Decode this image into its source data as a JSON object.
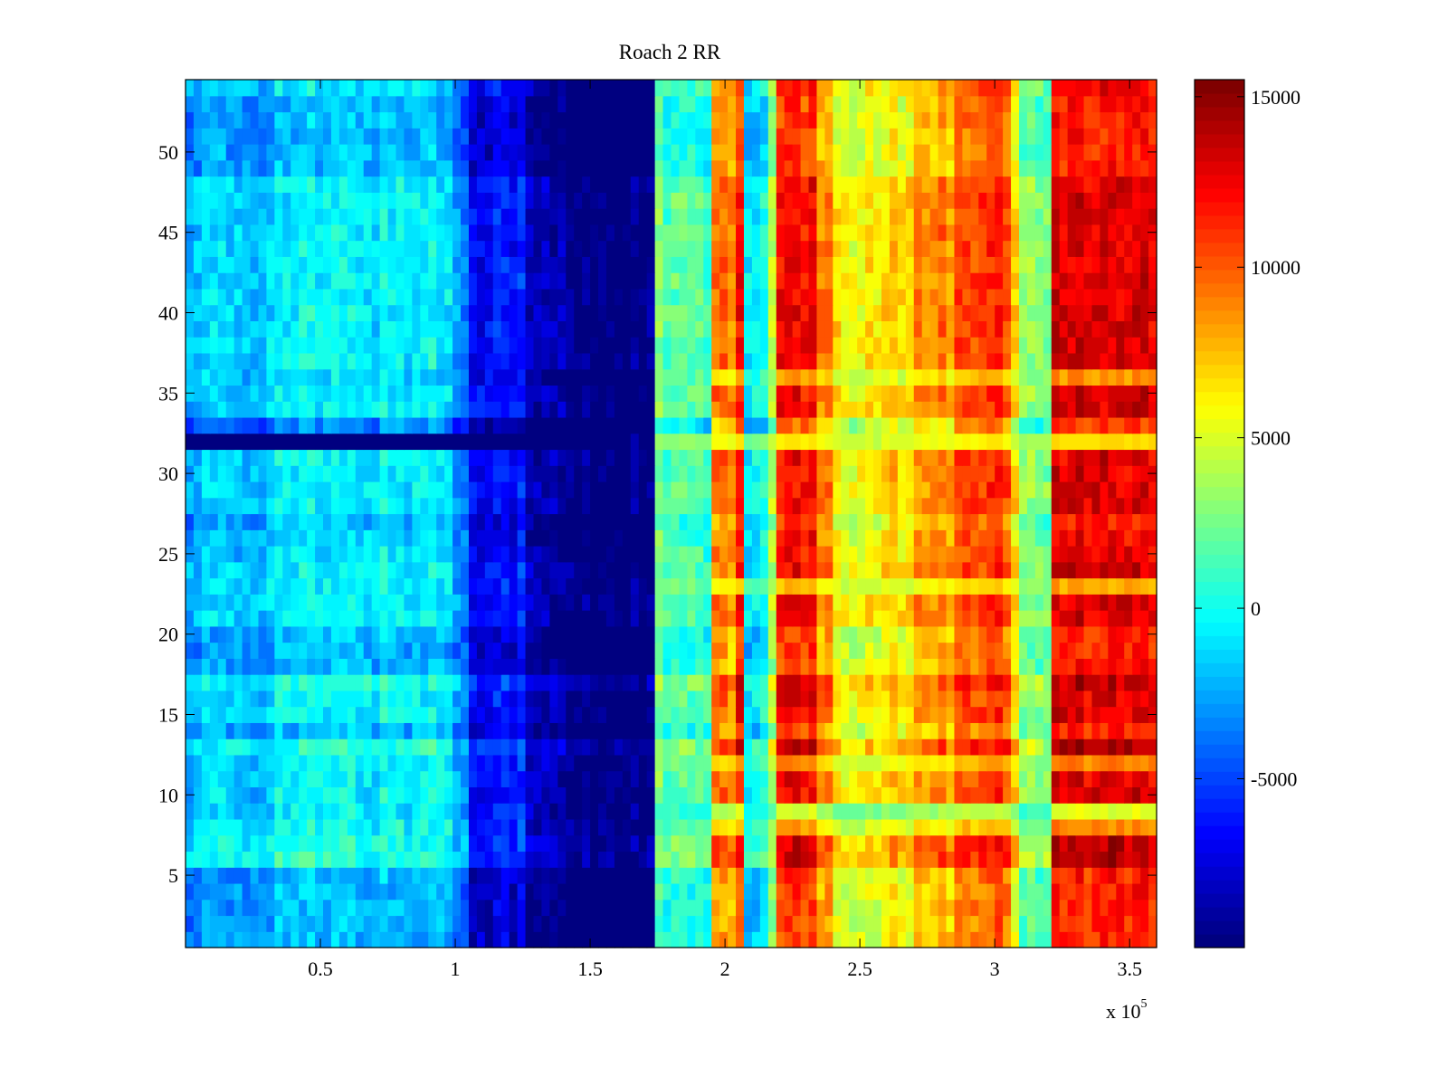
{
  "chart_data": {
    "type": "heatmap",
    "title": "Roach 2 RR",
    "xlabel": "",
    "ylabel": "",
    "x_multiplier_label": "x 10",
    "x_multiplier_exponent": "5",
    "xlim": [
      0,
      3.6
    ],
    "ylim": [
      0.5,
      54.5
    ],
    "x_ticks": [
      "0.5",
      "1",
      "1.5",
      "2",
      "2.5",
      "3",
      "3.5"
    ],
    "x_tick_values": [
      0.5,
      1,
      1.5,
      2,
      2.5,
      3,
      3.5
    ],
    "y_ticks": [
      "5",
      "10",
      "15",
      "20",
      "25",
      "30",
      "35",
      "40",
      "45",
      "50"
    ],
    "y_tick_values": [
      5,
      10,
      15,
      20,
      25,
      30,
      35,
      40,
      45,
      50
    ],
    "rows": 54,
    "x_bin_width_1e5": 0.03,
    "colormap": "jet",
    "clim": [
      -9950,
      15500
    ],
    "colorbar": {
      "ticks": [
        "-5000",
        "0",
        "5000",
        "10000",
        "15000"
      ],
      "tick_values": [
        -5000,
        0,
        5000,
        10000,
        15000
      ]
    },
    "column_profile": {
      "x_start_1e5": [
        0,
        0.3,
        1.0,
        1.05,
        1.25,
        1.4,
        1.73,
        1.76,
        1.95,
        2.05,
        2.08,
        2.17,
        2.2,
        2.35,
        2.4,
        2.55,
        2.7,
        2.85,
        3.05,
        3.1,
        3.2
      ],
      "values": [
        -1500,
        -500,
        -3000,
        -6000,
        -8500,
        -10000,
        3000,
        1500,
        9000,
        12000,
        0,
        5000,
        12000,
        9000,
        6000,
        7000,
        9000,
        11000,
        7000,
        3000,
        13000
      ]
    },
    "row_offsets": [
      -1500,
      -1500,
      -1500,
      -1500,
      -1500,
      1000,
      800,
      500,
      0,
      0,
      0,
      0,
      1000,
      -1500,
      0,
      0,
      1000,
      -1500,
      -1500,
      -1500,
      0,
      0,
      0,
      0,
      -500,
      -500,
      -1500,
      0,
      0,
      0,
      0,
      0,
      -2500,
      0,
      0,
      -500,
      0,
      0,
      0,
      0,
      0,
      0,
      0,
      0,
      0,
      0,
      0,
      0,
      -1500,
      -1500,
      -1500,
      -1500,
      -1500,
      -500
    ],
    "row_overrides": [
      {
        "row": 32,
        "left_value": -10000,
        "left_until_1e5": 1.55,
        "right_value": 4000,
        "blend": 0.7
      },
      {
        "row": 9,
        "right_value": 0,
        "blend": 0.6
      },
      {
        "row": 8,
        "right_value": 1500,
        "blend": 0.4
      },
      {
        "row": 23,
        "right_value": 3000,
        "blend": 0.5
      },
      {
        "row": 12,
        "right_value": 3000,
        "blend": 0.4
      },
      {
        "row": 36,
        "right_value": 3000,
        "blend": 0.4
      }
    ]
  }
}
